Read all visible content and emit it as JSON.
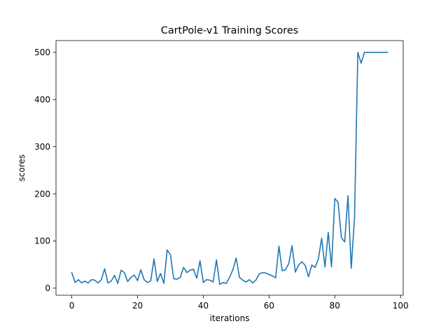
{
  "chart_data": {
    "type": "line",
    "title": "CartPole-v1 Training Scores",
    "xlabel": "iterations",
    "ylabel": "scores",
    "xlim": [
      -4.8,
      100.8
    ],
    "ylim": [
      -15,
      525
    ],
    "xticks": [
      0,
      20,
      40,
      60,
      80,
      100
    ],
    "yticks": [
      0,
      100,
      200,
      300,
      400,
      500
    ],
    "grid": false,
    "legend": "none",
    "line_color": "#1f77b4",
    "series": [
      {
        "x": [
          0,
          1,
          2,
          3,
          4,
          5,
          6,
          7,
          8,
          9,
          10,
          11,
          12,
          13,
          14,
          15,
          16,
          17,
          18,
          19,
          20,
          21,
          22,
          23,
          24,
          25,
          26,
          27,
          28,
          29,
          30,
          31,
          32,
          33,
          34,
          35,
          36,
          37,
          38,
          39,
          40,
          41,
          42,
          43,
          44,
          45,
          46,
          47,
          48,
          49,
          50,
          51,
          52,
          53,
          54,
          55,
          56,
          57,
          58,
          59,
          60,
          61,
          62,
          63,
          64,
          65,
          66,
          67,
          68,
          69,
          70,
          71,
          72,
          73,
          74,
          75,
          76,
          77,
          78,
          79,
          80,
          81,
          82,
          83,
          84,
          85,
          86,
          87,
          88,
          89,
          90,
          91,
          92,
          93,
          94,
          95,
          96
        ],
        "values": [
          33,
          12,
          18,
          11,
          15,
          11,
          18,
          17,
          11,
          18,
          41,
          11,
          15,
          27,
          10,
          38,
          33,
          14,
          23,
          28,
          16,
          39,
          18,
          12,
          15,
          62,
          14,
          31,
          10,
          81,
          71,
          20,
          19,
          23,
          44,
          33,
          38,
          40,
          21,
          58,
          12,
          18,
          17,
          13,
          60,
          8,
          12,
          10,
          23,
          39,
          64,
          23,
          17,
          13,
          18,
          11,
          17,
          30,
          33,
          32,
          29,
          26,
          22,
          89,
          37,
          39,
          52,
          90,
          34,
          49,
          56,
          48,
          24,
          49,
          44,
          62,
          106,
          45,
          118,
          45,
          190,
          182,
          107,
          98,
          196,
          42,
          150,
          500,
          477,
          500,
          500,
          500,
          500,
          500,
          500,
          500,
          500
        ]
      }
    ]
  }
}
